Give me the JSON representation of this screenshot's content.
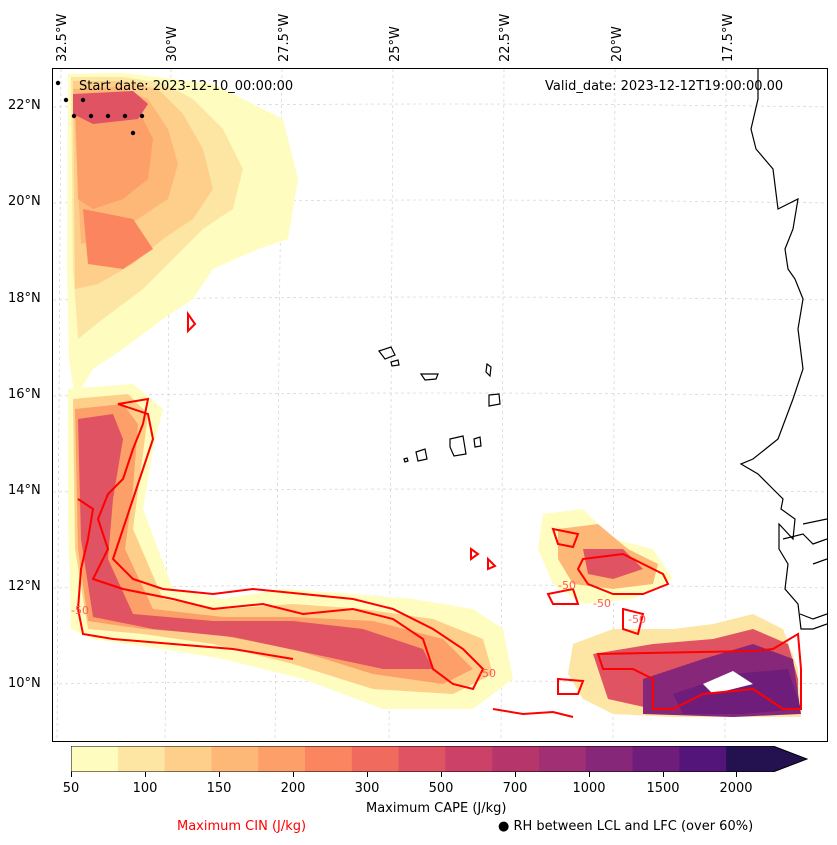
{
  "lon_labels": [
    "32.5°W",
    "30°W",
    "27.5°W",
    "25°W",
    "22.5°W",
    "20°W",
    "17.5°W"
  ],
  "lat_labels": [
    "22°N",
    "20°N",
    "18°N",
    "16°N",
    "14°N",
    "12°N",
    "10°N"
  ],
  "map": {
    "start_date": "Start date: 2023-12-10_00:00:00",
    "valid_date": "Valid_date: 2023-12-12T19:00:00.00",
    "contour_labels": [
      "-50",
      "-50",
      "-50",
      "-50",
      "-50"
    ]
  },
  "colorbar": {
    "tick_labels": [
      "50",
      "100",
      "150",
      "200",
      "300",
      "500",
      "700",
      "1000",
      "1500",
      "2000"
    ],
    "colors": [
      "#fefdbf",
      "#fde6a3",
      "#fdcf8b",
      "#fdb878",
      "#fc9f68",
      "#fa855f",
      "#f06b5d",
      "#e05362",
      "#cc4168",
      "#b6366c",
      "#a02f73",
      "#872779",
      "#6f1d7b",
      "#54157a",
      "#3b0f6e",
      "#231150"
    ],
    "label": "Maximum CAPE (J/kg)"
  },
  "legend": {
    "cin_label": "Maximum CIN (J/kg)",
    "cin_color": "#ff0000",
    "rh_label": "RH between LCL and LFC (over 60%)"
  }
}
